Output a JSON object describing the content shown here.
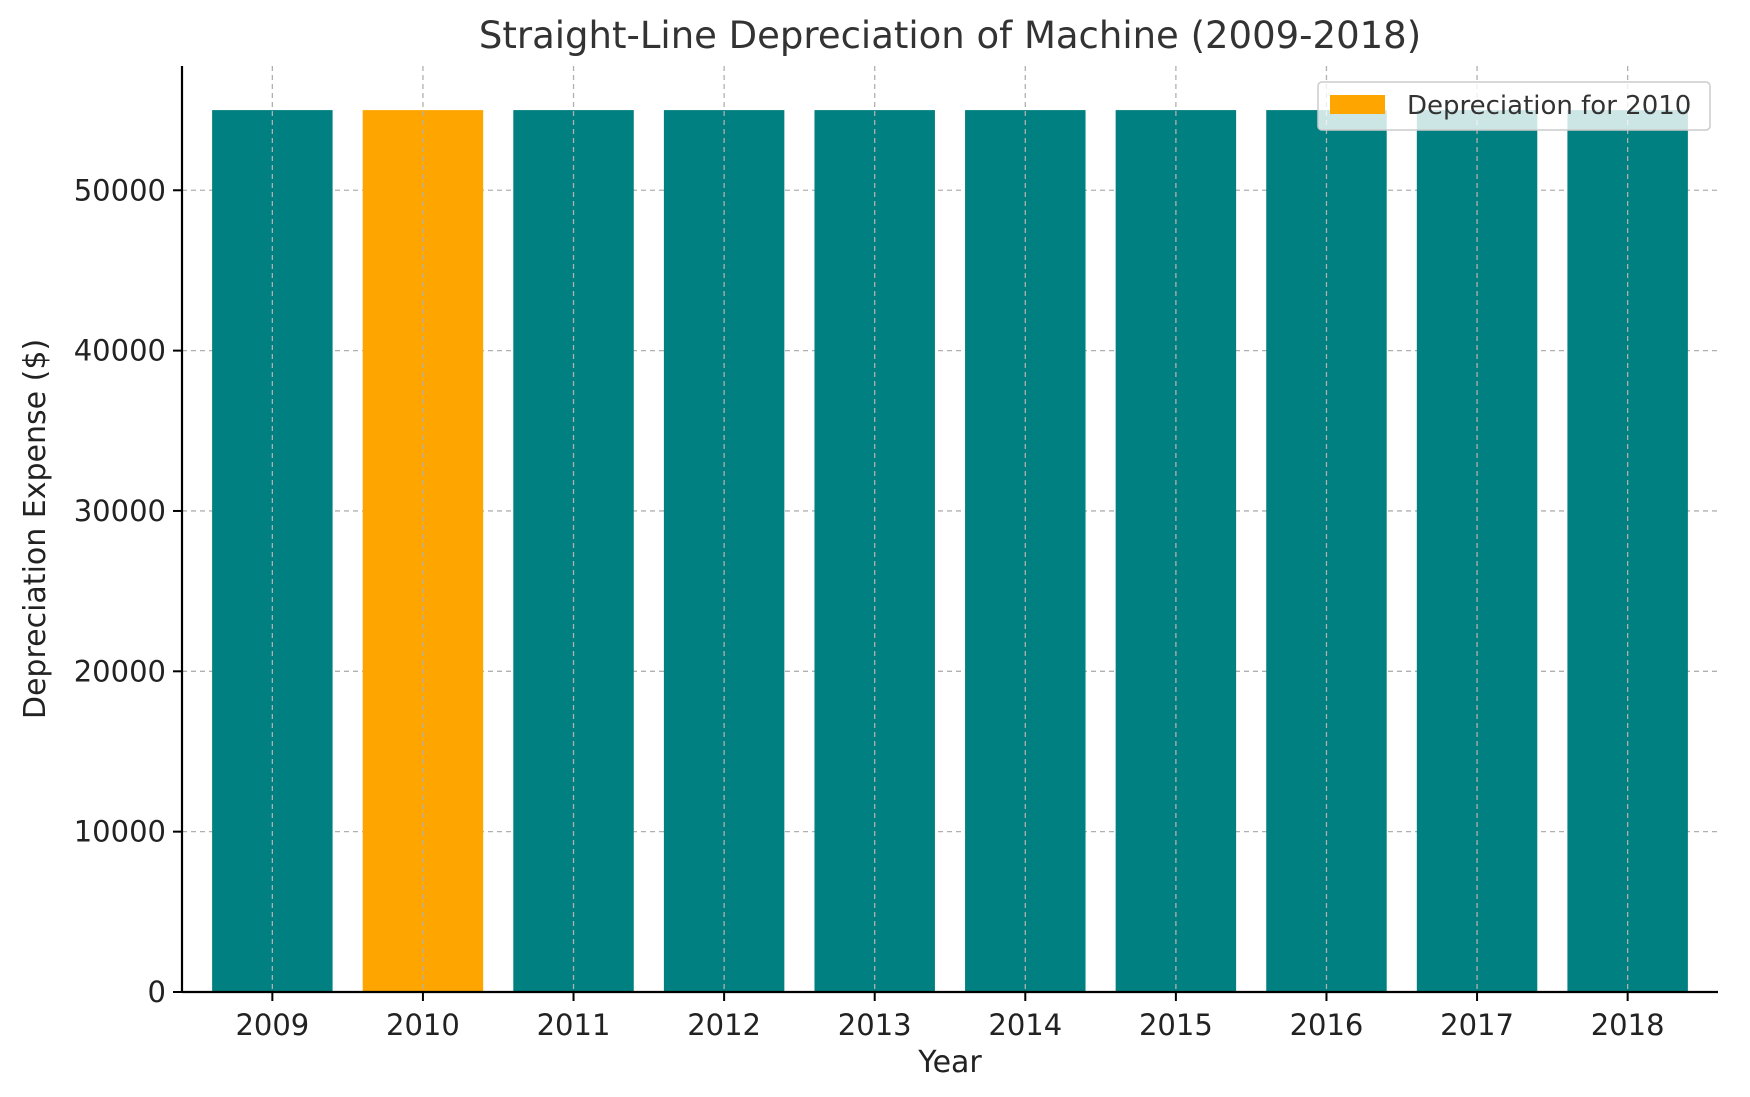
{
  "chart_data": {
    "type": "bar",
    "title": "Straight-Line Depreciation of Machine (2009-2018)",
    "xlabel": "Year",
    "ylabel": "Depreciation Expense ($)",
    "categories": [
      "2009",
      "2010",
      "2011",
      "2012",
      "2013",
      "2014",
      "2015",
      "2016",
      "2017",
      "2018"
    ],
    "values": [
      55000,
      55000,
      55000,
      55000,
      55000,
      55000,
      55000,
      55000,
      55000,
      55000
    ],
    "highlight_index": 1,
    "ylim": [
      0,
      57750
    ],
    "yticks": [
      0,
      10000,
      20000,
      30000,
      40000,
      50000
    ],
    "ytick_labels": [
      "0",
      "10000",
      "20000",
      "30000",
      "40000",
      "50000"
    ],
    "grid": true,
    "colors": {
      "bar": "#008080",
      "highlight": "#FFA500"
    },
    "legend": {
      "position": "top-right",
      "entries": [
        {
          "label": "Depreciation for 2010",
          "color": "#FFA500"
        }
      ]
    }
  }
}
